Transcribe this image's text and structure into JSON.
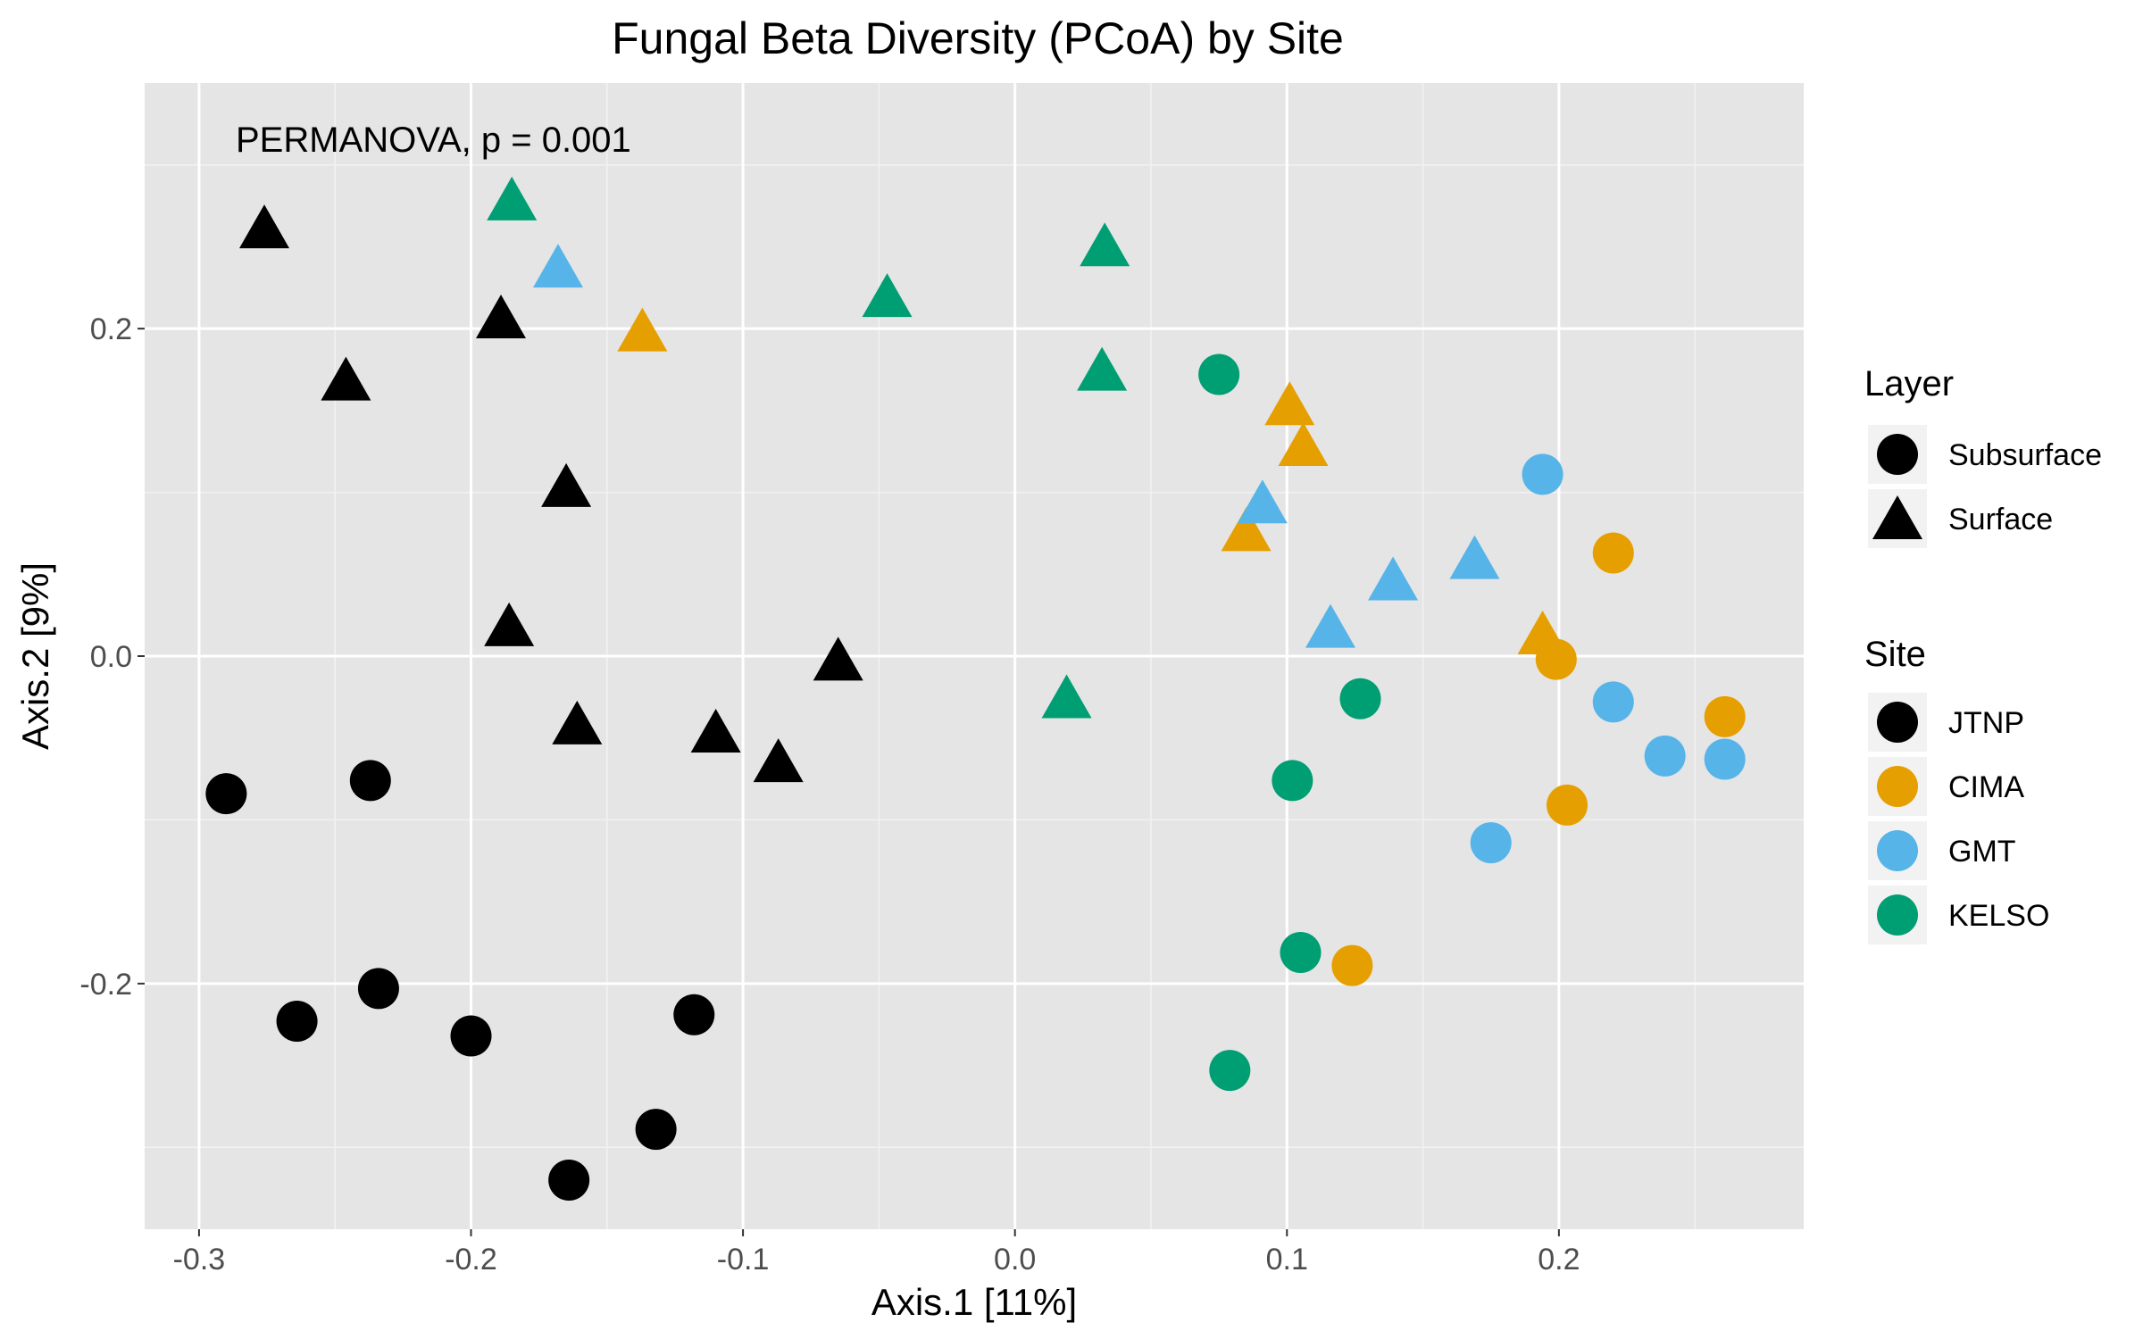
{
  "chart_data": {
    "type": "scatter",
    "title": "Fungal Beta Diversity (PCoA) by Site",
    "xlabel": "Axis.1   [11%]",
    "ylabel": "Axis.2   [9%]",
    "xlim": [
      -0.32,
      0.29
    ],
    "ylim": [
      -0.35,
      0.35
    ],
    "xticks": [
      -0.3,
      -0.2,
      -0.1,
      0.0,
      0.1,
      0.2
    ],
    "xtick_labels": [
      "-0.3",
      "-0.2",
      "-0.1",
      "0.0",
      "0.1",
      "0.2"
    ],
    "yticks": [
      -0.2,
      0.0,
      0.2
    ],
    "ytick_labels": [
      "-0.2",
      "0.0",
      "0.2"
    ],
    "grid": true,
    "annotation": "PERMANOVA, p = 0.001",
    "legend_position": "right",
    "legend": {
      "layer": {
        "title": "Layer",
        "entries": [
          {
            "label": "Subsurface",
            "shape": "circle"
          },
          {
            "label": "Surface",
            "shape": "triangle"
          }
        ]
      },
      "site": {
        "title": "Site",
        "entries": [
          {
            "label": "JTNP",
            "color": "#000000"
          },
          {
            "label": "CIMA",
            "color": "#E69F00"
          },
          {
            "label": "GMT",
            "color": "#56B4E9"
          },
          {
            "label": "KELSO",
            "color": "#009E73"
          }
        ]
      }
    },
    "points": [
      {
        "site": "JTNP",
        "layer": "Surface",
        "x": -0.276,
        "y": 0.26
      },
      {
        "site": "JTNP",
        "layer": "Surface",
        "x": -0.189,
        "y": 0.205
      },
      {
        "site": "JTNP",
        "layer": "Surface",
        "x": -0.246,
        "y": 0.167
      },
      {
        "site": "JTNP",
        "layer": "Surface",
        "x": -0.165,
        "y": 0.102
      },
      {
        "site": "JTNP",
        "layer": "Surface",
        "x": -0.186,
        "y": 0.017
      },
      {
        "site": "JTNP",
        "layer": "Surface",
        "x": -0.161,
        "y": -0.043
      },
      {
        "site": "JTNP",
        "layer": "Surface",
        "x": -0.11,
        "y": -0.048
      },
      {
        "site": "JTNP",
        "layer": "Surface",
        "x": -0.087,
        "y": -0.066
      },
      {
        "site": "JTNP",
        "layer": "Surface",
        "x": -0.065,
        "y": -0.004
      },
      {
        "site": "JTNP",
        "layer": "Subsurface",
        "x": -0.29,
        "y": -0.084
      },
      {
        "site": "JTNP",
        "layer": "Subsurface",
        "x": -0.237,
        "y": -0.076
      },
      {
        "site": "JTNP",
        "layer": "Subsurface",
        "x": -0.264,
        "y": -0.223
      },
      {
        "site": "JTNP",
        "layer": "Subsurface",
        "x": -0.234,
        "y": -0.203
      },
      {
        "site": "JTNP",
        "layer": "Subsurface",
        "x": -0.2,
        "y": -0.232
      },
      {
        "site": "JTNP",
        "layer": "Subsurface",
        "x": -0.118,
        "y": -0.219
      },
      {
        "site": "JTNP",
        "layer": "Subsurface",
        "x": -0.132,
        "y": -0.289
      },
      {
        "site": "JTNP",
        "layer": "Subsurface",
        "x": -0.164,
        "y": -0.32
      },
      {
        "site": "CIMA",
        "layer": "Surface",
        "x": -0.137,
        "y": 0.197
      },
      {
        "site": "CIMA",
        "layer": "Surface",
        "x": 0.101,
        "y": 0.152
      },
      {
        "site": "CIMA",
        "layer": "Surface",
        "x": 0.106,
        "y": 0.127
      },
      {
        "site": "CIMA",
        "layer": "Surface",
        "x": 0.085,
        "y": 0.075
      },
      {
        "site": "CIMA",
        "layer": "Surface",
        "x": 0.194,
        "y": 0.012
      },
      {
        "site": "CIMA",
        "layer": "Subsurface",
        "x": 0.22,
        "y": 0.063
      },
      {
        "site": "CIMA",
        "layer": "Subsurface",
        "x": 0.199,
        "y": -0.002
      },
      {
        "site": "CIMA",
        "layer": "Subsurface",
        "x": 0.261,
        "y": -0.037
      },
      {
        "site": "CIMA",
        "layer": "Subsurface",
        "x": 0.203,
        "y": -0.091
      },
      {
        "site": "CIMA",
        "layer": "Subsurface",
        "x": 0.124,
        "y": -0.189
      },
      {
        "site": "GMT",
        "layer": "Surface",
        "x": -0.168,
        "y": 0.236
      },
      {
        "site": "GMT",
        "layer": "Surface",
        "x": 0.091,
        "y": 0.092
      },
      {
        "site": "GMT",
        "layer": "Surface",
        "x": 0.139,
        "y": 0.045
      },
      {
        "site": "GMT",
        "layer": "Surface",
        "x": 0.169,
        "y": 0.058
      },
      {
        "site": "GMT",
        "layer": "Surface",
        "x": 0.116,
        "y": 0.016
      },
      {
        "site": "GMT",
        "layer": "Subsurface",
        "x": 0.194,
        "y": 0.111
      },
      {
        "site": "GMT",
        "layer": "Subsurface",
        "x": 0.22,
        "y": -0.028
      },
      {
        "site": "GMT",
        "layer": "Subsurface",
        "x": 0.239,
        "y": -0.061
      },
      {
        "site": "GMT",
        "layer": "Subsurface",
        "x": 0.261,
        "y": -0.063
      },
      {
        "site": "GMT",
        "layer": "Subsurface",
        "x": 0.175,
        "y": -0.114
      },
      {
        "site": "KELSO",
        "layer": "Surface",
        "x": -0.185,
        "y": 0.277
      },
      {
        "site": "KELSO",
        "layer": "Surface",
        "x": -0.047,
        "y": 0.218
      },
      {
        "site": "KELSO",
        "layer": "Surface",
        "x": 0.033,
        "y": 0.249
      },
      {
        "site": "KELSO",
        "layer": "Surface",
        "x": 0.032,
        "y": 0.173
      },
      {
        "site": "KELSO",
        "layer": "Surface",
        "x": 0.019,
        "y": -0.027
      },
      {
        "site": "KELSO",
        "layer": "Subsurface",
        "x": 0.075,
        "y": 0.172
      },
      {
        "site": "KELSO",
        "layer": "Subsurface",
        "x": 0.127,
        "y": -0.026
      },
      {
        "site": "KELSO",
        "layer": "Subsurface",
        "x": 0.102,
        "y": -0.076
      },
      {
        "site": "KELSO",
        "layer": "Subsurface",
        "x": 0.105,
        "y": -0.181
      },
      {
        "site": "KELSO",
        "layer": "Subsurface",
        "x": 0.079,
        "y": -0.253
      }
    ]
  }
}
